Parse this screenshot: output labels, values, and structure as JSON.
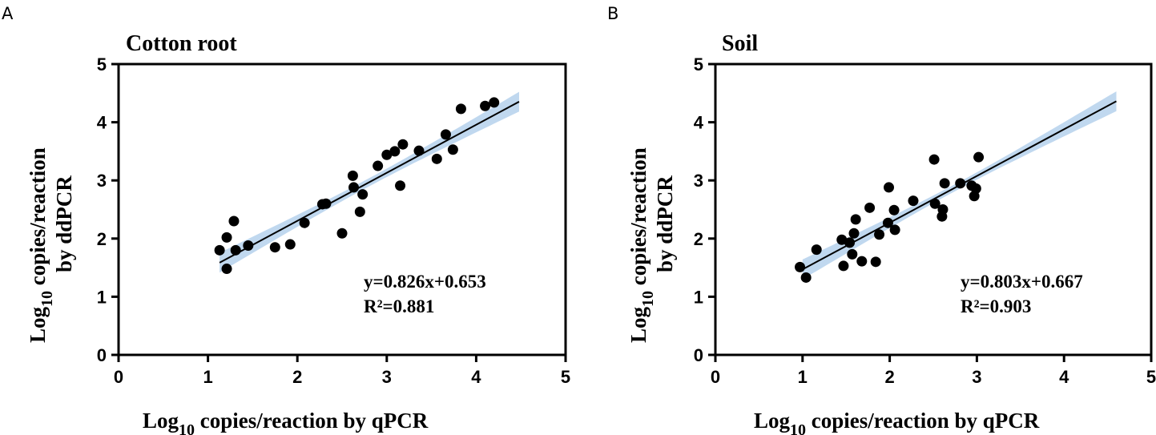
{
  "chart_data": [
    {
      "panel": "A",
      "type": "scatter",
      "title": "Cotton root",
      "xlabel_main": "Log",
      "xlabel_sub": "10",
      "xlabel_rest": " copies/reaction by qPCR",
      "ylabel_main": "Log",
      "ylabel_sub": "10",
      "ylabel_rest": " copies/reaction",
      "ylabel_line2": "by ddPCR",
      "xlim": [
        0,
        5
      ],
      "ylim": [
        0,
        5
      ],
      "xticks": [
        "0",
        "1",
        "2",
        "3",
        "4",
        "5"
      ],
      "yticks": [
        "0",
        "1",
        "2",
        "3",
        "4",
        "5"
      ],
      "grid": false,
      "x": [
        1.13,
        1.21,
        1.21,
        1.29,
        1.31,
        1.45,
        1.75,
        1.92,
        2.08,
        2.28,
        2.32,
        2.5,
        2.62,
        2.63,
        2.7,
        2.73,
        2.9,
        3.0,
        3.09,
        3.15,
        3.18,
        3.36,
        3.56,
        3.66,
        3.74,
        3.83,
        4.1,
        4.2
      ],
      "y": [
        1.8,
        2.02,
        1.48,
        2.3,
        1.8,
        1.88,
        1.85,
        1.9,
        2.27,
        2.59,
        2.6,
        2.09,
        3.08,
        2.88,
        2.46,
        2.76,
        3.25,
        3.44,
        3.5,
        2.91,
        3.62,
        3.51,
        3.37,
        3.79,
        3.53,
        4.23,
        4.28,
        4.34
      ],
      "fit": {
        "slope": 0.826,
        "intercept": 0.653,
        "x_range": [
          1.13,
          4.48
        ],
        "band_halfwidth_ends": 0.17,
        "band_halfwidth_center": 0.07
      },
      "equation": "y=0.826x+0.653",
      "r2": "R²=0.881",
      "colors": {
        "points": "#000000",
        "fit_line": "#000000",
        "ci_band": "#c0d8ef"
      }
    },
    {
      "panel": "B",
      "type": "scatter",
      "title": "Soil",
      "xlabel_main": "Log",
      "xlabel_sub": "10",
      "xlabel_rest": " copies/reaction by qPCR",
      "ylabel_main": "Log",
      "ylabel_sub": "10",
      "ylabel_rest": " copies/reaction",
      "ylabel_line2": "by ddPCR",
      "xlim": [
        0,
        5
      ],
      "ylim": [
        0,
        5
      ],
      "xticks": [
        "0",
        "1",
        "2",
        "3",
        "4",
        "5"
      ],
      "yticks": [
        "0",
        "1",
        "2",
        "3",
        "4",
        "5"
      ],
      "grid": false,
      "x": [
        0.97,
        1.04,
        1.16,
        1.45,
        1.47,
        1.54,
        1.57,
        1.59,
        1.61,
        1.68,
        1.77,
        1.84,
        1.88,
        1.98,
        1.99,
        2.05,
        2.06,
        2.27,
        2.51,
        2.52,
        2.6,
        2.61,
        2.63,
        2.81,
        2.94,
        2.97,
        2.99,
        3.02
      ],
      "y": [
        1.51,
        1.33,
        1.81,
        1.98,
        1.53,
        1.93,
        1.73,
        2.09,
        2.33,
        1.61,
        2.53,
        1.6,
        2.07,
        2.27,
        2.88,
        2.49,
        2.15,
        2.65,
        3.36,
        2.6,
        2.38,
        2.5,
        2.95,
        2.95,
        2.91,
        2.73,
        2.86,
        3.4
      ],
      "fit": {
        "slope": 0.803,
        "intercept": 0.667,
        "x_range": [
          1.0,
          4.6
        ],
        "band_halfwidth_ends": 0.17,
        "band_halfwidth_center": 0.06
      },
      "equation": "y=0.803x+0.667",
      "r2": "R²=0.903",
      "colors": {
        "points": "#000000",
        "fit_line": "#000000",
        "ci_band": "#c0d8ef"
      }
    }
  ]
}
